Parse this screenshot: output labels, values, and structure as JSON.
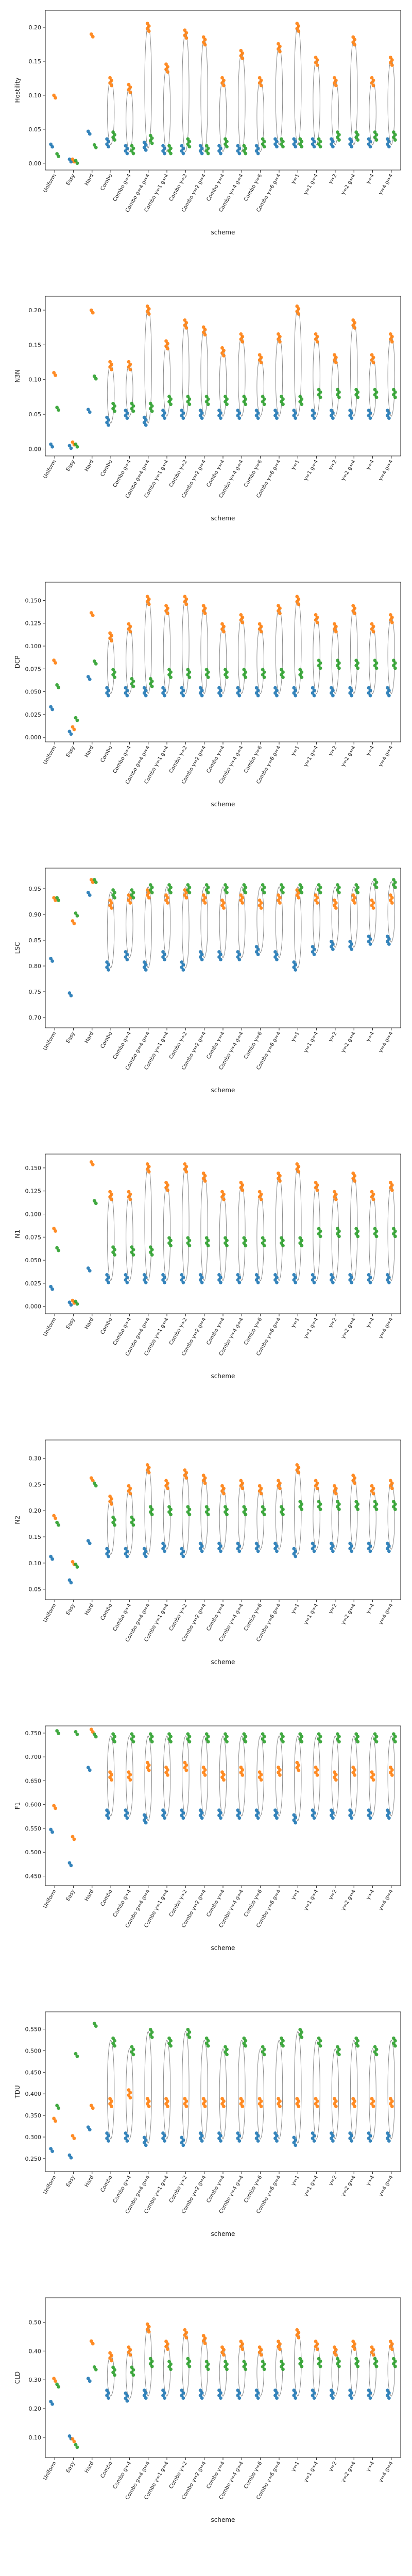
{
  "chart_data": {
    "type": "strip-violin",
    "x_label": "scheme",
    "categories": [
      "Uniform",
      "Easy",
      "Hard",
      "Combo",
      "Combo g=4",
      "Combo g=4 g=4",
      "Combo γ=1 g=4",
      "Combo γ=2",
      "Combo γ=2 g=4",
      "Combo γ=4",
      "Combo γ=4 g=4",
      "Combo γ=6",
      "Combo γ=6 g=4",
      "γ=1",
      "γ=1 g=4",
      "γ=2",
      "γ=2 g=4",
      "γ=4",
      "γ=4 g=4"
    ],
    "series": [
      {
        "color": "#1f77b4"
      },
      {
        "color": "#ff7f0e"
      },
      {
        "color": "#2ca02c"
      }
    ],
    "panels": [
      {
        "ylabel": "Hostility",
        "ylim": [
          -0.01,
          0.225
        ],
        "yticks": [
          0.0,
          0.05,
          0.1,
          0.15,
          0.2
        ],
        "strips": [
          [
            0.026,
            0.098,
            0.012
          ],
          [
            0.004,
            0.004,
            0.002
          ],
          [
            0.045,
            0.188,
            0.025
          ],
          [
            0.03,
            0.12,
            0.04
          ],
          [
            0.02,
            0.11,
            0.02
          ],
          [
            0.025,
            0.2,
            0.035
          ],
          [
            0.02,
            0.14,
            0.02
          ],
          [
            0.02,
            0.19,
            0.03
          ],
          [
            0.02,
            0.18,
            0.02
          ],
          [
            0.02,
            0.12,
            0.03
          ],
          [
            0.02,
            0.16,
            0.02
          ],
          [
            0.02,
            0.12,
            0.03
          ],
          [
            0.03,
            0.17,
            0.03
          ],
          [
            0.03,
            0.2,
            0.03
          ],
          [
            0.03,
            0.15,
            0.03
          ],
          [
            0.03,
            0.12,
            0.04
          ],
          [
            0.03,
            0.18,
            0.04
          ],
          [
            0.03,
            0.12,
            0.04
          ],
          [
            0.03,
            0.15,
            0.04
          ]
        ]
      },
      {
        "ylabel": "N3N",
        "ylim": [
          -0.01,
          0.22
        ],
        "yticks": [
          0.0,
          0.05,
          0.1,
          0.15,
          0.2
        ],
        "strips": [
          [
            0.005,
            0.108,
            0.058
          ],
          [
            0.003,
            0.008,
            0.005
          ],
          [
            0.055,
            0.198,
            0.103
          ],
          [
            0.04,
            0.12,
            0.06
          ],
          [
            0.05,
            0.12,
            0.06
          ],
          [
            0.04,
            0.2,
            0.06
          ],
          [
            0.05,
            0.15,
            0.07
          ],
          [
            0.05,
            0.18,
            0.07
          ],
          [
            0.05,
            0.17,
            0.07
          ],
          [
            0.05,
            0.14,
            0.07
          ],
          [
            0.05,
            0.16,
            0.07
          ],
          [
            0.05,
            0.13,
            0.07
          ],
          [
            0.05,
            0.16,
            0.07
          ],
          [
            0.05,
            0.2,
            0.07
          ],
          [
            0.05,
            0.16,
            0.08
          ],
          [
            0.05,
            0.13,
            0.08
          ],
          [
            0.05,
            0.18,
            0.08
          ],
          [
            0.05,
            0.13,
            0.08
          ],
          [
            0.05,
            0.16,
            0.08
          ]
        ]
      },
      {
        "ylabel": "DCP",
        "ylim": [
          -0.005,
          0.17
        ],
        "yticks": [
          0.0,
          0.025,
          0.05,
          0.075,
          0.1,
          0.125,
          0.15
        ],
        "strips": [
          [
            0.032,
            0.083,
            0.056
          ],
          [
            0.005,
            0.01,
            0.02
          ],
          [
            0.065,
            0.135,
            0.082
          ],
          [
            0.05,
            0.11,
            0.07
          ],
          [
            0.05,
            0.12,
            0.06
          ],
          [
            0.05,
            0.15,
            0.06
          ],
          [
            0.05,
            0.14,
            0.07
          ],
          [
            0.05,
            0.15,
            0.07
          ],
          [
            0.05,
            0.14,
            0.07
          ],
          [
            0.05,
            0.12,
            0.07
          ],
          [
            0.05,
            0.13,
            0.07
          ],
          [
            0.05,
            0.12,
            0.07
          ],
          [
            0.05,
            0.14,
            0.07
          ],
          [
            0.05,
            0.15,
            0.07
          ],
          [
            0.05,
            0.13,
            0.08
          ],
          [
            0.05,
            0.12,
            0.08
          ],
          [
            0.05,
            0.14,
            0.08
          ],
          [
            0.05,
            0.12,
            0.08
          ],
          [
            0.05,
            0.13,
            0.08
          ]
        ]
      },
      {
        "ylabel": "LSC",
        "ylim": [
          0.68,
          0.99
        ],
        "yticks": [
          0.7,
          0.75,
          0.8,
          0.85,
          0.9,
          0.95
        ],
        "strips": [
          [
            0.812,
            0.93,
            0.93
          ],
          [
            0.745,
            0.885,
            0.9
          ],
          [
            0.94,
            0.965,
            0.965
          ],
          [
            0.8,
            0.92,
            0.94
          ],
          [
            0.82,
            0.93,
            0.94
          ],
          [
            0.8,
            0.94,
            0.95
          ],
          [
            0.82,
            0.93,
            0.95
          ],
          [
            0.8,
            0.94,
            0.95
          ],
          [
            0.82,
            0.93,
            0.95
          ],
          [
            0.82,
            0.92,
            0.95
          ],
          [
            0.82,
            0.93,
            0.95
          ],
          [
            0.83,
            0.92,
            0.95
          ],
          [
            0.82,
            0.93,
            0.95
          ],
          [
            0.8,
            0.94,
            0.95
          ],
          [
            0.83,
            0.93,
            0.95
          ],
          [
            0.84,
            0.92,
            0.95
          ],
          [
            0.84,
            0.93,
            0.95
          ],
          [
            0.85,
            0.92,
            0.96
          ],
          [
            0.85,
            0.93,
            0.96
          ]
        ]
      },
      {
        "ylabel": "N1",
        "ylim": [
          -0.008,
          0.165
        ],
        "yticks": [
          0.0,
          0.025,
          0.05,
          0.075,
          0.1,
          0.125,
          0.15
        ],
        "strips": [
          [
            0.02,
            0.083,
            0.062
          ],
          [
            0.003,
            0.005,
            0.004
          ],
          [
            0.04,
            0.155,
            0.113
          ],
          [
            0.03,
            0.12,
            0.06
          ],
          [
            0.03,
            0.12,
            0.06
          ],
          [
            0.03,
            0.15,
            0.06
          ],
          [
            0.03,
            0.13,
            0.07
          ],
          [
            0.03,
            0.15,
            0.07
          ],
          [
            0.03,
            0.14,
            0.07
          ],
          [
            0.03,
            0.12,
            0.07
          ],
          [
            0.03,
            0.13,
            0.07
          ],
          [
            0.03,
            0.12,
            0.07
          ],
          [
            0.03,
            0.14,
            0.07
          ],
          [
            0.03,
            0.15,
            0.07
          ],
          [
            0.03,
            0.13,
            0.08
          ],
          [
            0.03,
            0.12,
            0.08
          ],
          [
            0.03,
            0.14,
            0.08
          ],
          [
            0.03,
            0.12,
            0.08
          ],
          [
            0.03,
            0.13,
            0.08
          ]
        ]
      },
      {
        "ylabel": "N2",
        "ylim": [
          0.03,
          0.335
        ],
        "yticks": [
          0.05,
          0.1,
          0.15,
          0.2,
          0.25,
          0.3
        ],
        "strips": [
          [
            0.11,
            0.188,
            0.175
          ],
          [
            0.065,
            0.1,
            0.095
          ],
          [
            0.14,
            0.26,
            0.25
          ],
          [
            0.12,
            0.22,
            0.18
          ],
          [
            0.12,
            0.24,
            0.18
          ],
          [
            0.12,
            0.28,
            0.2
          ],
          [
            0.13,
            0.25,
            0.2
          ],
          [
            0.12,
            0.27,
            0.2
          ],
          [
            0.13,
            0.26,
            0.2
          ],
          [
            0.13,
            0.24,
            0.2
          ],
          [
            0.13,
            0.25,
            0.2
          ],
          [
            0.13,
            0.24,
            0.2
          ],
          [
            0.13,
            0.25,
            0.2
          ],
          [
            0.12,
            0.28,
            0.21
          ],
          [
            0.13,
            0.25,
            0.21
          ],
          [
            0.13,
            0.24,
            0.21
          ],
          [
            0.13,
            0.26,
            0.21
          ],
          [
            0.13,
            0.24,
            0.21
          ],
          [
            0.13,
            0.25,
            0.21
          ]
        ]
      },
      {
        "ylabel": "F1",
        "ylim": [
          0.43,
          0.765
        ],
        "yticks": [
          0.45,
          0.5,
          0.55,
          0.6,
          0.65,
          0.7,
          0.75
        ],
        "strips": [
          [
            0.545,
            0.595,
            0.752
          ],
          [
            0.475,
            0.53,
            0.75
          ],
          [
            0.675,
            0.755,
            0.745
          ],
          [
            0.58,
            0.66,
            0.74
          ],
          [
            0.58,
            0.66,
            0.74
          ],
          [
            0.57,
            0.68,
            0.74
          ],
          [
            0.58,
            0.67,
            0.74
          ],
          [
            0.58,
            0.68,
            0.74
          ],
          [
            0.58,
            0.67,
            0.74
          ],
          [
            0.58,
            0.66,
            0.74
          ],
          [
            0.58,
            0.67,
            0.74
          ],
          [
            0.58,
            0.66,
            0.74
          ],
          [
            0.58,
            0.67,
            0.74
          ],
          [
            0.57,
            0.68,
            0.74
          ],
          [
            0.58,
            0.67,
            0.74
          ],
          [
            0.58,
            0.66,
            0.74
          ],
          [
            0.58,
            0.67,
            0.74
          ],
          [
            0.58,
            0.66,
            0.74
          ],
          [
            0.58,
            0.67,
            0.74
          ]
        ]
      },
      {
        "ylabel": "TDU",
        "ylim": [
          0.22,
          0.59
        ],
        "yticks": [
          0.25,
          0.3,
          0.35,
          0.4,
          0.45,
          0.5,
          0.55
        ],
        "strips": [
          [
            0.27,
            0.34,
            0.37
          ],
          [
            0.255,
            0.3,
            0.49
          ],
          [
            0.32,
            0.37,
            0.56
          ],
          [
            0.3,
            0.38,
            0.52
          ],
          [
            0.3,
            0.4,
            0.5
          ],
          [
            0.29,
            0.38,
            0.54
          ],
          [
            0.3,
            0.38,
            0.52
          ],
          [
            0.29,
            0.38,
            0.54
          ],
          [
            0.3,
            0.38,
            0.52
          ],
          [
            0.3,
            0.38,
            0.5
          ],
          [
            0.3,
            0.38,
            0.52
          ],
          [
            0.3,
            0.38,
            0.5
          ],
          [
            0.3,
            0.38,
            0.52
          ],
          [
            0.29,
            0.38,
            0.54
          ],
          [
            0.3,
            0.38,
            0.52
          ],
          [
            0.3,
            0.38,
            0.5
          ],
          [
            0.3,
            0.38,
            0.52
          ],
          [
            0.3,
            0.38,
            0.5
          ],
          [
            0.3,
            0.38,
            0.52
          ]
        ]
      },
      {
        "ylabel": "CLD",
        "ylim": [
          0.03,
          0.585
        ],
        "yticks": [
          0.1,
          0.2,
          0.3,
          0.4,
          0.5
        ],
        "strips": [
          [
            0.22,
            0.3,
            0.28
          ],
          [
            0.1,
            0.09,
            0.07
          ],
          [
            0.3,
            0.43,
            0.34
          ],
          [
            0.25,
            0.38,
            0.33
          ],
          [
            0.24,
            0.4,
            0.33
          ],
          [
            0.25,
            0.48,
            0.36
          ],
          [
            0.25,
            0.42,
            0.35
          ],
          [
            0.25,
            0.46,
            0.36
          ],
          [
            0.25,
            0.44,
            0.35
          ],
          [
            0.25,
            0.4,
            0.35
          ],
          [
            0.25,
            0.42,
            0.35
          ],
          [
            0.25,
            0.4,
            0.35
          ],
          [
            0.25,
            0.42,
            0.35
          ],
          [
            0.25,
            0.46,
            0.36
          ],
          [
            0.25,
            0.42,
            0.36
          ],
          [
            0.25,
            0.4,
            0.36
          ],
          [
            0.25,
            0.42,
            0.36
          ],
          [
            0.25,
            0.4,
            0.36
          ],
          [
            0.25,
            0.42,
            0.36
          ]
        ]
      }
    ]
  }
}
